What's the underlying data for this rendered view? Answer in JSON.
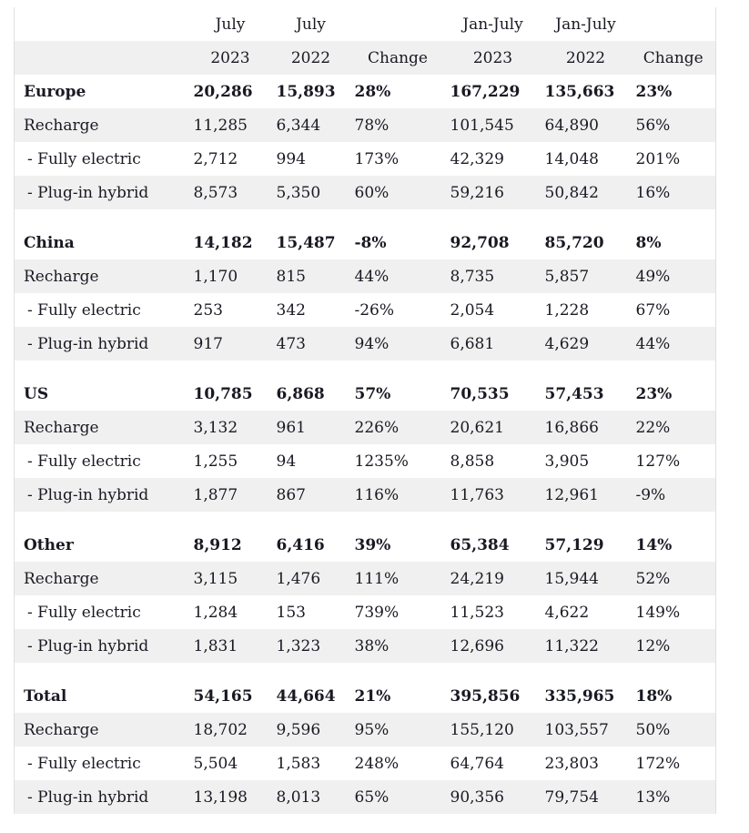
{
  "colors": {
    "row_stripe": "#f0f0f0",
    "text": "#191923",
    "table_border": "#e0e0e0",
    "background": "#ffffff"
  },
  "table": {
    "header_row1": [
      "",
      "July",
      "July",
      "",
      "Jan-July",
      "Jan-July",
      ""
    ],
    "header_row2": [
      "",
      "2023",
      "2022",
      "Change",
      "2023",
      "2022",
      "Change"
    ],
    "sections": [
      {
        "rows": [
          {
            "label": "Europe",
            "bold": true,
            "indent": false,
            "values": [
              "20,286",
              "15,893",
              "28%",
              "167,229",
              "135,663",
              "23%"
            ]
          },
          {
            "label": "Recharge",
            "bold": false,
            "indent": false,
            "values": [
              "11,285",
              "6,344",
              "78%",
              "101,545",
              "64,890",
              "56%"
            ]
          },
          {
            "label": "- Fully electric",
            "bold": false,
            "indent": true,
            "values": [
              "2,712",
              "994",
              "173%",
              "42,329",
              "14,048",
              "201%"
            ]
          },
          {
            "label": "- Plug-in hybrid",
            "bold": false,
            "indent": true,
            "values": [
              "8,573",
              "5,350",
              "60%",
              "59,216",
              "50,842",
              "16%"
            ]
          }
        ]
      },
      {
        "rows": [
          {
            "label": "China",
            "bold": true,
            "indent": false,
            "values": [
              "14,182",
              "15,487",
              "-8%",
              "92,708",
              "85,720",
              "8%"
            ]
          },
          {
            "label": "Recharge",
            "bold": false,
            "indent": false,
            "values": [
              "1,170",
              "815",
              "44%",
              "8,735",
              "5,857",
              "49%"
            ]
          },
          {
            "label": "- Fully electric",
            "bold": false,
            "indent": true,
            "values": [
              "253",
              "342",
              "-26%",
              "2,054",
              "1,228",
              "67%"
            ]
          },
          {
            "label": "- Plug-in hybrid",
            "bold": false,
            "indent": true,
            "values": [
              "917",
              "473",
              "94%",
              "6,681",
              "4,629",
              "44%"
            ]
          }
        ]
      },
      {
        "rows": [
          {
            "label": "US",
            "bold": true,
            "indent": false,
            "values": [
              "10,785",
              "6,868",
              "57%",
              "70,535",
              "57,453",
              "23%"
            ]
          },
          {
            "label": "Recharge",
            "bold": false,
            "indent": false,
            "values": [
              "3,132",
              "961",
              "226%",
              "20,621",
              "16,866",
              "22%"
            ]
          },
          {
            "label": "- Fully electric",
            "bold": false,
            "indent": true,
            "values": [
              "1,255",
              "94",
              "1235%",
              "8,858",
              "3,905",
              "127%"
            ]
          },
          {
            "label": "- Plug-in hybrid",
            "bold": false,
            "indent": true,
            "values": [
              "1,877",
              "867",
              "116%",
              "11,763",
              "12,961",
              "-9%"
            ]
          }
        ]
      },
      {
        "rows": [
          {
            "label": "Other",
            "bold": true,
            "indent": false,
            "values": [
              "8,912",
              "6,416",
              "39%",
              "65,384",
              "57,129",
              "14%"
            ]
          },
          {
            "label": "Recharge",
            "bold": false,
            "indent": false,
            "values": [
              "3,115",
              "1,476",
              "111%",
              "24,219",
              "15,944",
              "52%"
            ]
          },
          {
            "label": "- Fully electric",
            "bold": false,
            "indent": true,
            "values": [
              "1,284",
              "153",
              "739%",
              "11,523",
              "4,622",
              "149%"
            ]
          },
          {
            "label": "- Plug-in hybrid",
            "bold": false,
            "indent": true,
            "values": [
              "1,831",
              "1,323",
              "38%",
              "12,696",
              "11,322",
              "12%"
            ]
          }
        ]
      },
      {
        "rows": [
          {
            "label": "Total",
            "bold": true,
            "indent": false,
            "values": [
              "54,165",
              "44,664",
              "21%",
              "395,856",
              "335,965",
              "18%"
            ]
          },
          {
            "label": "Recharge",
            "bold": false,
            "indent": false,
            "values": [
              "18,702",
              "9,596",
              "95%",
              "155,120",
              "103,557",
              "50%"
            ]
          },
          {
            "label": "- Fully electric",
            "bold": false,
            "indent": true,
            "values": [
              "5,504",
              "1,583",
              "248%",
              "64,764",
              "23,803",
              "172%"
            ]
          },
          {
            "label": "- Plug-in hybrid",
            "bold": false,
            "indent": true,
            "values": [
              "13,198",
              "8,013",
              "65%",
              "90,356",
              "79,754",
              "13%"
            ]
          }
        ]
      }
    ]
  }
}
